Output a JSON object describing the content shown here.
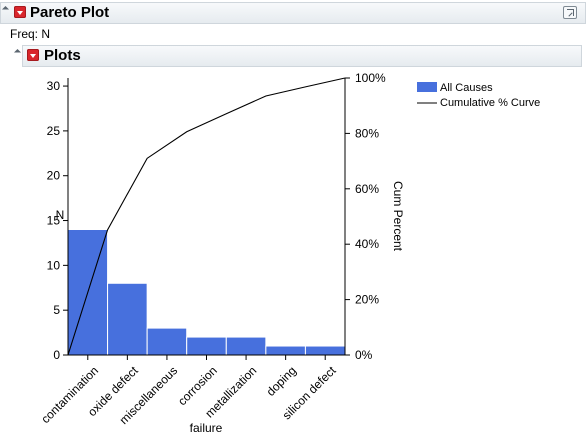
{
  "report": {
    "title": "Pareto Plot",
    "freq_label": "Freq: N"
  },
  "plots_section": {
    "title": "Plots"
  },
  "chart_data": {
    "type": "bar",
    "title": "",
    "xlabel": "failure",
    "ylabel": "N",
    "y2label": "Cum Percent",
    "categories": [
      "contamination",
      "oxide defect",
      "miscellaneous",
      "corrosion",
      "metallization",
      "doping",
      "silicon defect"
    ],
    "series": [
      {
        "name": "All Causes",
        "values": [
          14,
          8,
          3,
          2,
          2,
          1,
          1
        ],
        "color": "#4770dd"
      }
    ],
    "cumulative_curve": {
      "name": "Cumulative % Curve",
      "values": [
        0,
        45.2,
        71.0,
        80.6,
        87.1,
        93.5,
        96.8,
        100
      ],
      "color": "#000000"
    },
    "ylim": [
      0,
      30.9
    ],
    "y2lim": [
      0,
      100
    ],
    "yticks": [
      0,
      5,
      10,
      15,
      20,
      25,
      30
    ],
    "y2ticks": [
      "0%",
      "20%",
      "40%",
      "60%",
      "80%",
      "100%"
    ],
    "grid": false,
    "legend": "right"
  }
}
